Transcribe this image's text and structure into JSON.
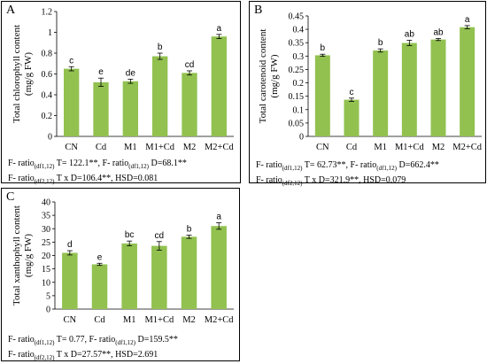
{
  "chart_data": [
    {
      "type": "bar",
      "panel_label": "A",
      "ylabel_line1": "Total chlorophyll content",
      "ylabel_line2": "(mg/g FW)",
      "categories": [
        "CN",
        "Cd",
        "M1",
        "M1+Cd",
        "M2",
        "M2+Cd"
      ],
      "values": [
        0.65,
        0.52,
        0.53,
        0.77,
        0.61,
        0.96
      ],
      "errors": [
        0.02,
        0.04,
        0.02,
        0.03,
        0.02,
        0.02
      ],
      "significance": [
        "c",
        "e",
        "de",
        "b",
        "cd",
        "a"
      ],
      "ylim": [
        0,
        1.2
      ],
      "yticks": [
        "0",
        "0.2",
        "0.4",
        "0.6",
        "0.8",
        "1",
        "1.2"
      ],
      "bar_color": "#92c150",
      "stats": {
        "line1_a": "F- ratio",
        "line1_a_sub": "(df1,12)",
        "line1_b": " T= 122.1**, F- ratio",
        "line1_b_sub": "(df1,12)",
        "line1_c": " D=68.1**",
        "line2_a": "F- ratio",
        "line2_a_sub": "(df2,12)",
        "line2_b": " T x D=106.4**, HSD=0.081"
      }
    },
    {
      "type": "bar",
      "panel_label": "B",
      "ylabel_line1": "Total carotenoid content",
      "ylabel_line2": "(mg/g FW)",
      "categories": [
        "CN",
        "Cd",
        "M1",
        "M1+Cd",
        "M2",
        "M2+Cd"
      ],
      "values": [
        0.303,
        0.137,
        0.321,
        0.349,
        0.362,
        0.408
      ],
      "errors": [
        0.004,
        0.006,
        0.006,
        0.01,
        0.004,
        0.006
      ],
      "significance": [
        "b",
        "c",
        "b",
        "ab",
        "ab",
        "a"
      ],
      "ylim": [
        0,
        0.45
      ],
      "yticks": [
        "0",
        "0.05",
        "0.1",
        "0.15",
        "0.2",
        "0.25",
        "0.3",
        "0.35",
        "0.4",
        "0.45"
      ],
      "bar_color": "#92c150",
      "stats": {
        "line1_a": "F- ratio",
        "line1_a_sub": "(df1,12)",
        "line1_b": " T= 62.73**, F- ratio",
        "line1_b_sub": "(df1,12)",
        "line1_c": " D=662.4**",
        "line2_a": "F- ratio",
        "line2_a_sub": "(df2,12)",
        "line2_b": " T x D=321.9**, HSD=0.079"
      }
    },
    {
      "type": "bar",
      "panel_label": "C",
      "ylabel_line1": "Total xanthophyll content",
      "ylabel_line2": "(mg/g FW)",
      "categories": [
        "CN",
        "Cd",
        "M1",
        "M1+Cd",
        "M2",
        "M2+Cd"
      ],
      "values": [
        21,
        16.7,
        24.5,
        23.6,
        27,
        31
      ],
      "errors": [
        0.8,
        0.4,
        0.9,
        1.6,
        0.6,
        1.2
      ],
      "significance": [
        "d",
        "e",
        "bc",
        "cd",
        "b",
        "a"
      ],
      "ylim": [
        0,
        40
      ],
      "yticks": [
        "0",
        "5",
        "10",
        "15",
        "20",
        "25",
        "30",
        "35",
        "40"
      ],
      "bar_color": "#92c150",
      "stats": {
        "line1_a": "F- ratio",
        "line1_a_sub": "(df1,12)",
        "line1_b": " T= 0.77, F- ratio",
        "line1_b_sub": "(df1,12)",
        "line1_c": " D=159.5**",
        "line2_a": "F- ratio",
        "line2_a_sub": "(df2,12)",
        "line2_b": " T x D=27.57**, HSD=2.691"
      }
    }
  ]
}
